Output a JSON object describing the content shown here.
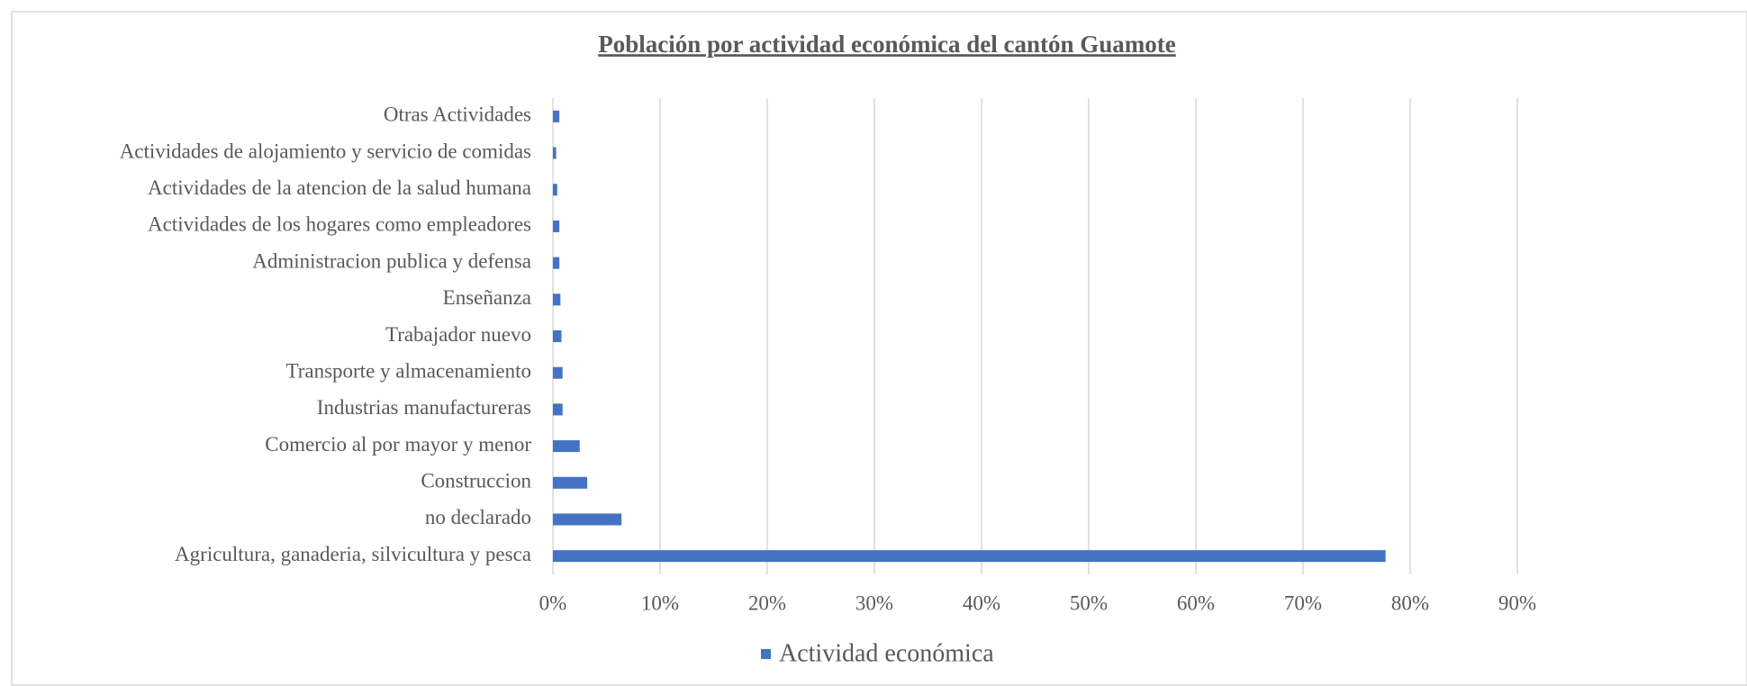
{
  "chart_data": {
    "type": "bar",
    "orientation": "horizontal",
    "title": "Población por actividad económica del cantón Guamote",
    "categories": [
      "Agricultura, ganaderia, silvicultura y pesca",
      "no declarado",
      "Construccion",
      "Comercio al por mayor y menor",
      "Industrias manufactureras",
      "Transporte y almacenamiento",
      "Trabajador nuevo",
      "Enseñanza",
      "Administracion publica y defensa",
      "Actividades de los hogares como empleadores",
      "Actividades de la atencion de la salud humana",
      "Actividades de alojamiento y servicio de comidas",
      "Otras Actividades"
    ],
    "series": [
      {
        "name": "Actividad económica",
        "color": "#4472c4",
        "values": [
          77.7,
          6.4,
          3.2,
          2.5,
          0.9,
          0.9,
          0.8,
          0.7,
          0.6,
          0.6,
          0.4,
          0.3,
          0.6
        ]
      }
    ],
    "xlim": [
      0,
      90
    ],
    "xticks": [
      {
        "value": 0,
        "label": "0%"
      },
      {
        "value": 10,
        "label": "10%"
      },
      {
        "value": 20,
        "label": "20%"
      },
      {
        "value": 30,
        "label": "30%"
      },
      {
        "value": 40,
        "label": "40%"
      },
      {
        "value": 50,
        "label": "50%"
      },
      {
        "value": 60,
        "label": "60%"
      },
      {
        "value": 70,
        "label": "70%"
      },
      {
        "value": 80,
        "label": "80%"
      },
      {
        "value": 90,
        "label": "90%"
      }
    ],
    "grid": true,
    "legend": "bottom"
  }
}
